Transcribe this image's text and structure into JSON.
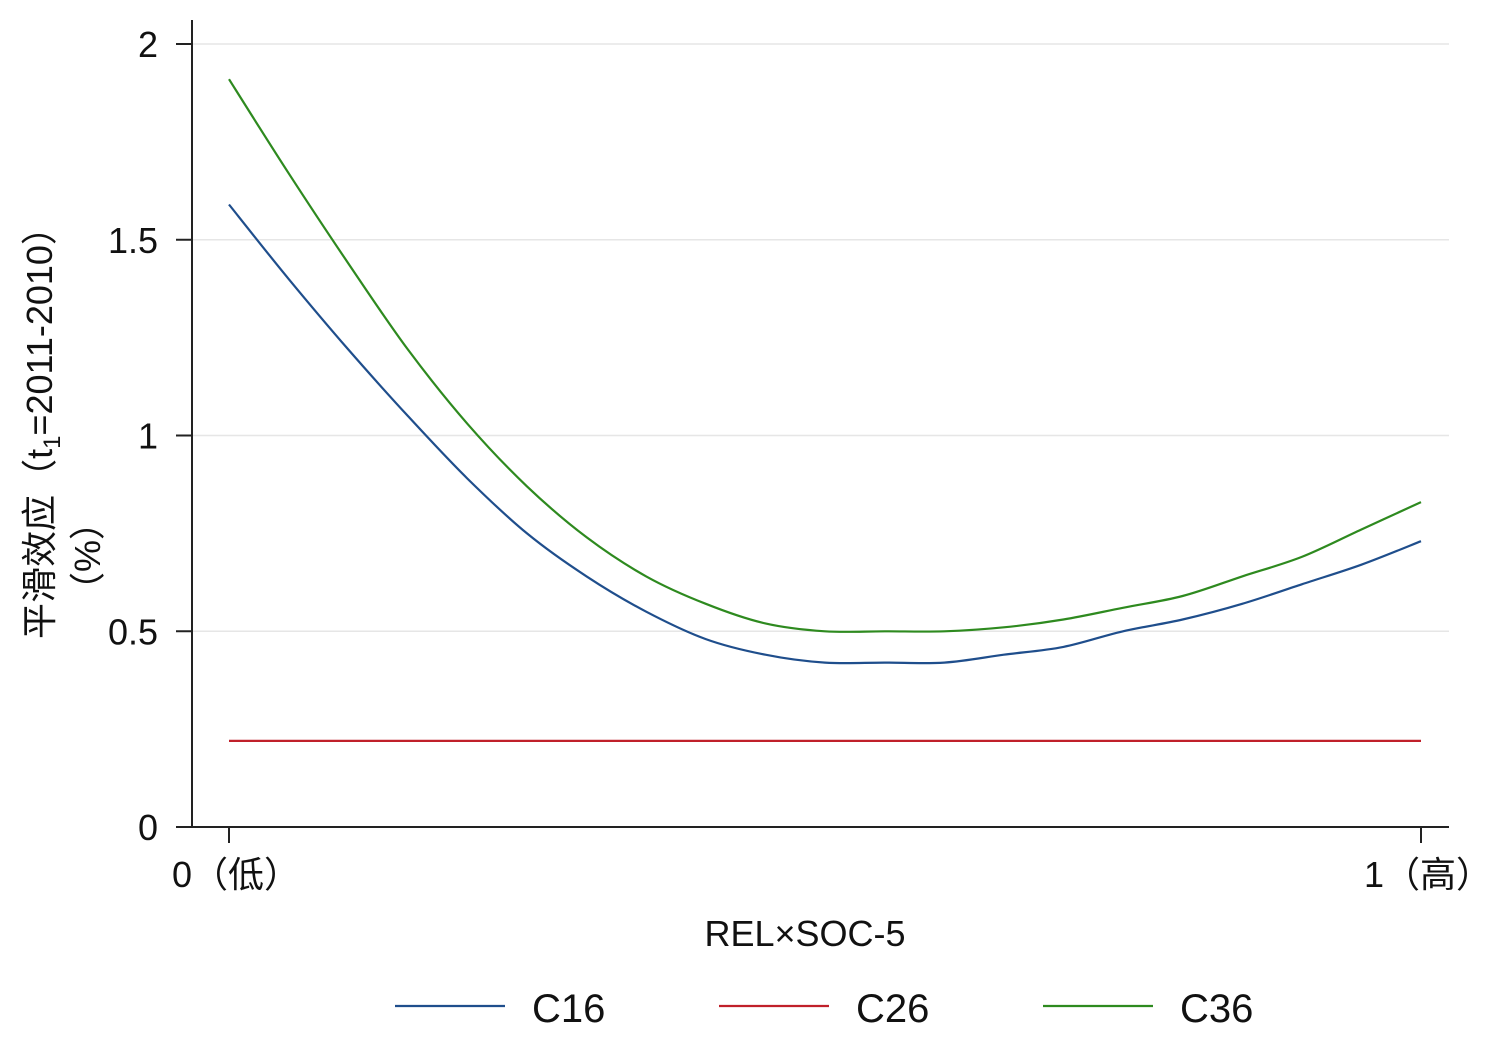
{
  "chart_data": {
    "type": "line",
    "title": "",
    "xlabel": "REL×SOC-5",
    "ylabel": {
      "line1_prefix": "平滑效应（t",
      "line1_sub": "1",
      "line1_suffix": "=2011-2010）",
      "line2": "（%）"
    },
    "xlim": [
      0,
      1
    ],
    "ylim": [
      0,
      2
    ],
    "x_ticks": [
      {
        "value": 0,
        "label": "0（低）"
      },
      {
        "value": 1,
        "label": "1（高）"
      }
    ],
    "y_ticks": [
      {
        "value": 0,
        "label": "0"
      },
      {
        "value": 0.5,
        "label": "0.5"
      },
      {
        "value": 1,
        "label": "1"
      },
      {
        "value": 1.5,
        "label": "1.5"
      },
      {
        "value": 2,
        "label": "2"
      }
    ],
    "grid": "horizontal",
    "legend_position": "bottom",
    "x": [
      0,
      0.05,
      0.1,
      0.15,
      0.2,
      0.25,
      0.3,
      0.35,
      0.4,
      0.45,
      0.5,
      0.55,
      0.6,
      0.65,
      0.7,
      0.75,
      0.8,
      0.85,
      0.9,
      0.95,
      1.0
    ],
    "series": [
      {
        "name": "C16",
        "color": "#1f4e8c",
        "values": [
          1.59,
          1.4,
          1.22,
          1.05,
          0.89,
          0.75,
          0.64,
          0.55,
          0.48,
          0.44,
          0.42,
          0.42,
          0.42,
          0.44,
          0.46,
          0.5,
          0.53,
          0.57,
          0.62,
          0.67,
          0.73
        ]
      },
      {
        "name": "C26",
        "color": "#c0202a",
        "values": [
          0.22,
          0.22,
          0.22,
          0.22,
          0.22,
          0.22,
          0.22,
          0.22,
          0.22,
          0.22,
          0.22,
          0.22,
          0.22,
          0.22,
          0.22,
          0.22,
          0.22,
          0.22,
          0.22,
          0.22,
          0.22
        ]
      },
      {
        "name": "C36",
        "color": "#2e8a1f",
        "values": [
          1.91,
          1.67,
          1.44,
          1.22,
          1.03,
          0.87,
          0.74,
          0.64,
          0.57,
          0.52,
          0.5,
          0.5,
          0.5,
          0.51,
          0.53,
          0.56,
          0.59,
          0.64,
          0.69,
          0.76,
          0.83
        ]
      }
    ]
  }
}
